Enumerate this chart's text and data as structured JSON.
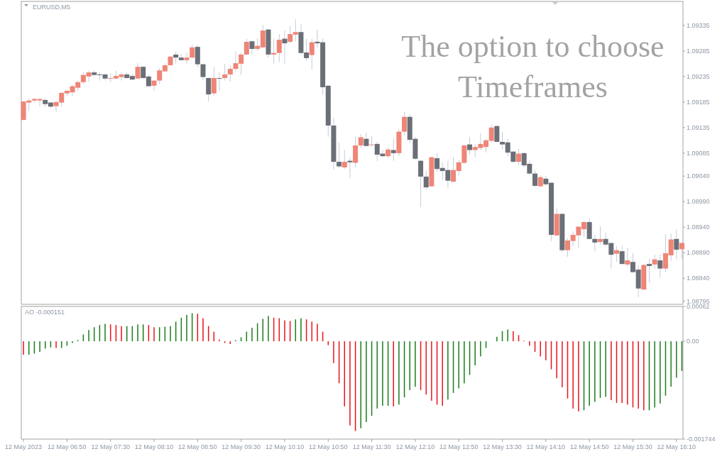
{
  "chart_data": [
    {
      "type": "candlestick",
      "title": "EURUSD,M5",
      "annotations": [
        "The option to choose Timeframes"
      ],
      "tick_labels": "y",
      "xlim": [
        "2023-05-12T06:08",
        "2023-05-12T16:16"
      ],
      "ylim": [
        1.08789,
        1.09382
      ],
      "yticks": [
        1.09335,
        1.09285,
        1.09235,
        1.09185,
        1.09135,
        1.09085,
        {
          "value": 1.0904,
          "label": "1.09040"
        },
        {
          "value": 1.0899,
          "label": "1.08990"
        },
        {
          "value": 1.0894,
          "label": "1.08940"
        },
        {
          "value": 1.0889,
          "label": "1.08890"
        },
        {
          "value": 1.0884,
          "label": "1.08840"
        },
        1.08795
      ],
      "x": [
        "2023-05-12T06:10",
        "2023-05-12T06:15",
        "2023-05-12T06:20",
        "2023-05-12T06:25",
        "2023-05-12T06:30",
        "2023-05-12T06:35",
        "2023-05-12T06:40",
        "2023-05-12T06:45",
        "2023-05-12T06:50",
        "2023-05-12T06:55",
        "2023-05-12T07:00",
        "2023-05-12T07:05",
        "2023-05-12T07:10",
        "2023-05-12T07:15",
        "2023-05-12T07:20",
        "2023-05-12T07:25",
        "2023-05-12T07:30",
        "2023-05-12T07:35",
        "2023-05-12T07:40",
        "2023-05-12T07:45",
        "2023-05-12T07:50",
        "2023-05-12T07:55",
        "2023-05-12T08:00",
        "2023-05-12T08:05",
        "2023-05-12T08:10",
        "2023-05-12T08:15",
        "2023-05-12T08:20",
        "2023-05-12T08:25",
        "2023-05-12T08:30",
        "2023-05-12T08:35",
        "2023-05-12T08:40",
        "2023-05-12T08:45",
        "2023-05-12T08:50",
        "2023-05-12T08:55",
        "2023-05-12T09:00",
        "2023-05-12T09:05",
        "2023-05-12T09:10",
        "2023-05-12T09:15",
        "2023-05-12T09:20",
        "2023-05-12T09:25",
        "2023-05-12T09:30",
        "2023-05-12T09:35",
        "2023-05-12T09:40",
        "2023-05-12T09:45",
        "2023-05-12T09:50",
        "2023-05-12T09:55",
        "2023-05-12T10:00",
        "2023-05-12T10:05",
        "2023-05-12T10:10",
        "2023-05-12T10:15",
        "2023-05-12T10:20",
        "2023-05-12T10:25",
        "2023-05-12T10:30",
        "2023-05-12T10:35",
        "2023-05-12T10:40",
        "2023-05-12T10:45",
        "2023-05-12T10:50",
        "2023-05-12T10:55",
        "2023-05-12T11:00",
        "2023-05-12T11:05",
        "2023-05-12T11:10",
        "2023-05-12T11:15",
        "2023-05-12T11:20",
        "2023-05-12T11:25",
        "2023-05-12T11:30",
        "2023-05-12T11:35",
        "2023-05-12T11:40",
        "2023-05-12T11:45",
        "2023-05-12T11:50",
        "2023-05-12T11:55",
        "2023-05-12T12:00",
        "2023-05-12T12:05",
        "2023-05-12T12:10",
        "2023-05-12T12:15",
        "2023-05-12T12:20",
        "2023-05-12T12:25",
        "2023-05-12T12:30",
        "2023-05-12T12:35",
        "2023-05-12T12:40",
        "2023-05-12T12:45",
        "2023-05-12T12:50",
        "2023-05-12T12:55",
        "2023-05-12T13:00",
        "2023-05-12T13:05",
        "2023-05-12T13:10",
        "2023-05-12T13:15",
        "2023-05-12T13:20",
        "2023-05-12T13:25",
        "2023-05-12T13:30",
        "2023-05-12T13:35",
        "2023-05-12T13:40",
        "2023-05-12T13:45",
        "2023-05-12T13:50",
        "2023-05-12T13:55",
        "2023-05-12T14:00",
        "2023-05-12T14:05",
        "2023-05-12T14:10",
        "2023-05-12T14:15",
        "2023-05-12T14:20",
        "2023-05-12T14:25",
        "2023-05-12T14:30",
        "2023-05-12T14:35",
        "2023-05-12T14:40",
        "2023-05-12T14:45",
        "2023-05-12T14:50",
        "2023-05-12T14:55",
        "2023-05-12T15:00",
        "2023-05-12T15:05",
        "2023-05-12T15:10",
        "2023-05-12T15:15",
        "2023-05-12T15:20",
        "2023-05-12T15:25",
        "2023-05-12T15:30",
        "2023-05-12T15:35",
        "2023-05-12T15:40",
        "2023-05-12T15:45",
        "2023-05-12T15:50",
        "2023-05-12T15:55",
        "2023-05-12T16:00",
        "2023-05-12T16:05",
        "2023-05-12T16:10",
        "2023-05-12T16:15"
      ],
      "ohlc": [
        [
          1.0915,
          1.09187,
          1.09149,
          1.09186
        ],
        [
          1.09184,
          1.09192,
          1.09167,
          1.09188
        ],
        [
          1.09188,
          1.09193,
          1.09184,
          1.09191
        ],
        [
          1.09188,
          1.09192,
          1.09177,
          1.09191
        ],
        [
          1.09189,
          1.09192,
          1.09176,
          1.09181
        ],
        [
          1.09184,
          1.09185,
          1.09173,
          1.09176
        ],
        [
          1.09177,
          1.09187,
          1.09166,
          1.09185
        ],
        [
          1.09184,
          1.09204,
          1.09176,
          1.09203
        ],
        [
          1.09202,
          1.09208,
          1.09197,
          1.09207
        ],
        [
          1.09204,
          1.09218,
          1.09197,
          1.09216
        ],
        [
          1.09213,
          1.09227,
          1.09207,
          1.09224
        ],
        [
          1.09224,
          1.09243,
          1.0922,
          1.09238
        ],
        [
          1.09235,
          1.09246,
          1.09225,
          1.09243
        ],
        [
          1.09243,
          1.09247,
          1.09235,
          1.09238
        ],
        [
          1.09239,
          1.09243,
          1.09227,
          1.09238
        ],
        [
          1.09239,
          1.0924,
          1.09227,
          1.09231
        ],
        [
          1.09231,
          1.09241,
          1.09224,
          1.09232
        ],
        [
          1.09231,
          1.09246,
          1.09229,
          1.09236
        ],
        [
          1.09234,
          1.09243,
          1.09227,
          1.09239
        ],
        [
          1.09239,
          1.09243,
          1.09231,
          1.09232
        ],
        [
          1.09236,
          1.0924,
          1.09228,
          1.09229
        ],
        [
          1.09231,
          1.09261,
          1.0923,
          1.09254
        ],
        [
          1.09254,
          1.09255,
          1.09231,
          1.09232
        ],
        [
          1.09235,
          1.09239,
          1.09215,
          1.09216
        ],
        [
          1.09217,
          1.09228,
          1.09207,
          1.09227
        ],
        [
          1.09227,
          1.09252,
          1.0922,
          1.09247
        ],
        [
          1.09245,
          1.09261,
          1.09244,
          1.09257
        ],
        [
          1.09257,
          1.09275,
          1.09256,
          1.09274
        ],
        [
          1.09278,
          1.09284,
          1.0926,
          1.09272
        ],
        [
          1.09272,
          1.09279,
          1.09266,
          1.09267
        ],
        [
          1.09267,
          1.09282,
          1.0926,
          1.09272
        ],
        [
          1.09272,
          1.09297,
          1.09271,
          1.09292
        ],
        [
          1.09293,
          1.09297,
          1.09253,
          1.09259
        ],
        [
          1.09259,
          1.0926,
          1.09228,
          1.09234
        ],
        [
          1.09232,
          1.09233,
          1.09186,
          1.092
        ],
        [
          1.09202,
          1.09253,
          1.09197,
          1.09232
        ],
        [
          1.09232,
          1.09243,
          1.09206,
          1.09231
        ],
        [
          1.09232,
          1.0926,
          1.09227,
          1.09239
        ],
        [
          1.09239,
          1.09257,
          1.09225,
          1.0925
        ],
        [
          1.0925,
          1.09284,
          1.09245,
          1.09261
        ],
        [
          1.0926,
          1.09282,
          1.09238,
          1.09278
        ],
        [
          1.09278,
          1.09309,
          1.09277,
          1.09303
        ],
        [
          1.09304,
          1.09305,
          1.09278,
          1.09289
        ],
        [
          1.09289,
          1.0931,
          1.09285,
          1.09295
        ],
        [
          1.09292,
          1.09336,
          1.09291,
          1.09325
        ],
        [
          1.09327,
          1.09328,
          1.09272,
          1.09278
        ],
        [
          1.09278,
          1.09309,
          1.0926,
          1.09281
        ],
        [
          1.09281,
          1.09318,
          1.09263,
          1.09307
        ],
        [
          1.09309,
          1.09325,
          1.0926,
          1.093
        ],
        [
          1.09303,
          1.09334,
          1.093,
          1.09318
        ],
        [
          1.09317,
          1.09347,
          1.09304,
          1.09322
        ],
        [
          1.09322,
          1.09338,
          1.09279,
          1.09281
        ],
        [
          1.09282,
          1.09309,
          1.09266,
          1.09271
        ],
        [
          1.09277,
          1.09309,
          1.09249,
          1.09302
        ],
        [
          1.09303,
          1.09327,
          1.09292,
          1.093
        ],
        [
          1.09302,
          1.0931,
          1.09199,
          1.09214
        ],
        [
          1.09217,
          1.09218,
          1.09117,
          1.09139
        ],
        [
          1.09139,
          1.09154,
          1.09053,
          1.09068
        ],
        [
          1.09068,
          1.09106,
          1.09056,
          1.09059
        ],
        [
          1.09057,
          1.09091,
          1.09054,
          1.09068
        ],
        [
          1.0907,
          1.09077,
          1.09036,
          1.09067
        ],
        [
          1.09066,
          1.09117,
          1.09057,
          1.091
        ],
        [
          1.091,
          1.09122,
          1.09095,
          1.09116
        ],
        [
          1.09113,
          1.09125,
          1.09097,
          1.09099
        ],
        [
          1.09101,
          1.09118,
          1.09097,
          1.09102
        ],
        [
          1.09103,
          1.09107,
          1.0907,
          1.09082
        ],
        [
          1.09084,
          1.09092,
          1.09077,
          1.09079
        ],
        [
          1.09079,
          1.09096,
          1.09075,
          1.09092
        ],
        [
          1.09091,
          1.09113,
          1.0907,
          1.09085
        ],
        [
          1.09085,
          1.09132,
          1.09079,
          1.09127
        ],
        [
          1.09127,
          1.09166,
          1.0912,
          1.09156
        ],
        [
          1.09156,
          1.09161,
          1.09104,
          1.09111
        ],
        [
          1.09113,
          1.09117,
          1.09072,
          1.09074
        ],
        [
          1.0907,
          1.09071,
          1.08979,
          1.09039
        ],
        [
          1.09039,
          1.0905,
          1.09014,
          1.09018
        ],
        [
          1.0902,
          1.09078,
          1.09019,
          1.09077
        ],
        [
          1.09075,
          1.09085,
          1.09049,
          1.09054
        ],
        [
          1.09056,
          1.09067,
          1.09032,
          1.0905
        ],
        [
          1.09052,
          1.0907,
          1.09017,
          1.09031
        ],
        [
          1.09029,
          1.09077,
          1.09028,
          1.09052
        ],
        [
          1.0905,
          1.09072,
          1.09041,
          1.09067
        ],
        [
          1.09066,
          1.09102,
          1.09064,
          1.091
        ],
        [
          1.09102,
          1.09117,
          1.09082,
          1.09091
        ],
        [
          1.09091,
          1.09103,
          1.09077,
          1.09097
        ],
        [
          1.09095,
          1.09124,
          1.09091,
          1.09103
        ],
        [
          1.09097,
          1.09113,
          1.09086,
          1.0911
        ],
        [
          1.09109,
          1.09141,
          1.09106,
          1.09135
        ],
        [
          1.09138,
          1.09139,
          1.09106,
          1.09107
        ],
        [
          1.09107,
          1.09127,
          1.09093,
          1.09102
        ],
        [
          1.09106,
          1.09113,
          1.09079,
          1.09086
        ],
        [
          1.09088,
          1.09089,
          1.09066,
          1.09068
        ],
        [
          1.09068,
          1.09093,
          1.09061,
          1.09084
        ],
        [
          1.09085,
          1.09086,
          1.09057,
          1.09061
        ],
        [
          1.09064,
          1.0907,
          1.09043,
          1.09045
        ],
        [
          1.09045,
          1.09052,
          1.09018,
          1.09021
        ],
        [
          1.0902,
          1.09041,
          1.09019,
          1.09038
        ],
        [
          1.09035,
          1.09041,
          1.09021,
          1.09024
        ],
        [
          1.09027,
          1.09028,
          1.08913,
          1.08925
        ],
        [
          1.08924,
          1.08977,
          1.08923,
          1.08966
        ],
        [
          1.08966,
          1.08968,
          1.08891,
          1.08895
        ],
        [
          1.08895,
          1.08918,
          1.08882,
          1.08914
        ],
        [
          1.08913,
          1.08932,
          1.08903,
          1.08925
        ],
        [
          1.08924,
          1.08942,
          1.089,
          1.08941
        ],
        [
          1.08936,
          1.08952,
          1.08921,
          1.0895
        ],
        [
          1.0895,
          1.08957,
          1.08916,
          1.08917
        ],
        [
          1.08917,
          1.08925,
          1.08893,
          1.0891
        ],
        [
          1.08911,
          1.08942,
          1.08906,
          1.08917
        ],
        [
          1.08917,
          1.08929,
          1.08903,
          1.08906
        ],
        [
          1.08909,
          1.0891,
          1.08859,
          1.08886
        ],
        [
          1.08888,
          1.08903,
          1.08872,
          1.08895
        ],
        [
          1.08893,
          1.08904,
          1.08867,
          1.08868
        ],
        [
          1.08867,
          1.089,
          1.08863,
          1.08875
        ],
        [
          1.08872,
          1.08889,
          1.08851,
          1.08852
        ],
        [
          1.08857,
          1.08866,
          1.08803,
          1.0882
        ],
        [
          1.08818,
          1.08868,
          1.08817,
          1.08866
        ],
        [
          1.08868,
          1.08878,
          1.08831,
          1.08864
        ],
        [
          1.08867,
          1.08886,
          1.08859,
          1.08877
        ],
        [
          1.08875,
          1.08886,
          1.08841,
          1.08859
        ],
        [
          1.08859,
          1.08926,
          1.08852,
          1.08889
        ],
        [
          1.08885,
          1.08927,
          1.08874,
          1.08916
        ],
        [
          1.08917,
          1.08935,
          1.08877,
          1.08896
        ],
        [
          1.08897,
          1.08911,
          1.08878,
          1.08909
        ]
      ],
      "colors": [
        "#ef8577",
        "#ef8577",
        "#ef8577",
        "#ef8577",
        "#6b6f77",
        "#6b6f77",
        "#ef8577",
        "#ef8577",
        "#ef8577",
        "#ef8577",
        "#ef8577",
        "#ef8577",
        "#ef8577",
        "#6b6f77",
        "#6b6f77",
        "#6b6f77",
        "#ef8577",
        "#ef8577",
        "#ef8577",
        "#6b6f77",
        "#6b6f77",
        "#ef8577",
        "#6b6f77",
        "#6b6f77",
        "#ef8577",
        "#ef8577",
        "#ef8577",
        "#ef8577",
        "#6b6f77",
        "#6b6f77",
        "#ef8577",
        "#ef8577",
        "#6b6f77",
        "#6b6f77",
        "#6b6f77",
        "#ef8577",
        "#6b6f77",
        "#ef8577",
        "#ef8577",
        "#ef8577",
        "#ef8577",
        "#ef8577",
        "#6b6f77",
        "#ef8577",
        "#ef8577",
        "#6b6f77",
        "#ef8577",
        "#ef8577",
        "#6b6f77",
        "#ef8577",
        "#ef8577",
        "#6b6f77",
        "#6b6f77",
        "#ef8577",
        "#6b6f77",
        "#6b6f77",
        "#6b6f77",
        "#6b6f77",
        "#6b6f77",
        "#ef8577",
        "#6b6f77",
        "#ef8577",
        "#ef8577",
        "#6b6f77",
        "#ef8577",
        "#6b6f77",
        "#6b6f77",
        "#ef8577",
        "#6b6f77",
        "#ef8577",
        "#ef8577",
        "#6b6f77",
        "#6b6f77",
        "#6b6f77",
        "#6b6f77",
        "#ef8577",
        "#6b6f77",
        "#6b6f77",
        "#6b6f77",
        "#ef8577",
        "#ef8577",
        "#ef8577",
        "#6b6f77",
        "#ef8577",
        "#ef8577",
        "#ef8577",
        "#ef8577",
        "#6b6f77",
        "#6b6f77",
        "#6b6f77",
        "#6b6f77",
        "#ef8577",
        "#6b6f77",
        "#6b6f77",
        "#6b6f77",
        "#ef8577",
        "#6b6f77",
        "#6b6f77",
        "#ef8577",
        "#6b6f77",
        "#ef8577",
        "#ef8577",
        "#ef8577",
        "#ef8577",
        "#6b6f77",
        "#6b6f77",
        "#ef8577",
        "#6b6f77",
        "#6b6f77",
        "#ef8577",
        "#6b6f77",
        "#ef8577",
        "#6b6f77",
        "#6b6f77",
        "#ef8577",
        "#6b6f77",
        "#ef8577",
        "#6b6f77",
        "#ef8577",
        "#ef8577",
        "#6b6f77",
        "#ef8577"
      ]
    },
    {
      "type": "bar",
      "title": "AO -0.000151",
      "xlim": [
        "2023-05-12T06:08",
        "2023-05-12T16:16"
      ],
      "xticks": [
        {
          "value": "2023-05-12T06:10",
          "label": "12 May 2023"
        },
        {
          "value": "2023-05-12T06:50",
          "label": "12 May 06:50"
        },
        {
          "value": "2023-05-12T07:30",
          "label": "12 May 07:30"
        },
        {
          "value": "2023-05-12T08:10",
          "label": "12 May 08:10"
        },
        {
          "value": "2023-05-12T08:50",
          "label": "12 May 08:50"
        },
        {
          "value": "2023-05-12T09:30",
          "label": "12 May 09:30"
        },
        {
          "value": "2023-05-12T10:10",
          "label": "12 May 10:10"
        },
        {
          "value": "2023-05-12T10:50",
          "label": "12 May 10:50"
        },
        {
          "value": "2023-05-12T11:30",
          "label": "12 May 11:30"
        },
        {
          "value": "2023-05-12T12:10",
          "label": "12 May 12:10"
        },
        {
          "value": "2023-05-12T12:50",
          "label": "12 May 12:50"
        },
        {
          "value": "2023-05-12T13:30",
          "label": "12 May 13:30"
        },
        {
          "value": "2023-05-12T14:10",
          "label": "12 May 14:10"
        },
        {
          "value": "2023-05-12T14:50",
          "label": "12 May 14:50"
        },
        {
          "value": "2023-05-12T15:30",
          "label": "12 May 15:30"
        },
        {
          "value": "2023-05-12T16:10",
          "label": "12 May 16:10"
        }
      ],
      "ylim": [
        -0.001744,
        0.00062
      ],
      "yticks": [
        0.00062,
        {
          "value": 0,
          "label": "0.00"
        },
        -0.001744
      ],
      "x": [
        "2023-05-12T06:10",
        "2023-05-12T06:15",
        "2023-05-12T06:20",
        "2023-05-12T06:25",
        "2023-05-12T06:30",
        "2023-05-12T06:35",
        "2023-05-12T06:40",
        "2023-05-12T06:45",
        "2023-05-12T06:50",
        "2023-05-12T06:55",
        "2023-05-12T07:00",
        "2023-05-12T07:05",
        "2023-05-12T07:10",
        "2023-05-12T07:15",
        "2023-05-12T07:20",
        "2023-05-12T07:25",
        "2023-05-12T07:30",
        "2023-05-12T07:35",
        "2023-05-12T07:40",
        "2023-05-12T07:45",
        "2023-05-12T07:50",
        "2023-05-12T07:55",
        "2023-05-12T08:00",
        "2023-05-12T08:05",
        "2023-05-12T08:10",
        "2023-05-12T08:15",
        "2023-05-12T08:20",
        "2023-05-12T08:25",
        "2023-05-12T08:30",
        "2023-05-12T08:35",
        "2023-05-12T08:40",
        "2023-05-12T08:45",
        "2023-05-12T08:50",
        "2023-05-12T08:55",
        "2023-05-12T09:00",
        "2023-05-12T09:05",
        "2023-05-12T09:10",
        "2023-05-12T09:15",
        "2023-05-12T09:20",
        "2023-05-12T09:25",
        "2023-05-12T09:30",
        "2023-05-12T09:35",
        "2023-05-12T09:40",
        "2023-05-12T09:45",
        "2023-05-12T09:50",
        "2023-05-12T09:55",
        "2023-05-12T10:00",
        "2023-05-12T10:05",
        "2023-05-12T10:10",
        "2023-05-12T10:15",
        "2023-05-12T10:20",
        "2023-05-12T10:25",
        "2023-05-12T10:30",
        "2023-05-12T10:35",
        "2023-05-12T10:40",
        "2023-05-12T10:45",
        "2023-05-12T10:50",
        "2023-05-12T10:55",
        "2023-05-12T11:00",
        "2023-05-12T11:05",
        "2023-05-12T11:10",
        "2023-05-12T11:15",
        "2023-05-12T11:20",
        "2023-05-12T11:25",
        "2023-05-12T11:30",
        "2023-05-12T11:35",
        "2023-05-12T11:40",
        "2023-05-12T11:45",
        "2023-05-12T11:50",
        "2023-05-12T11:55",
        "2023-05-12T12:00",
        "2023-05-12T12:05",
        "2023-05-12T12:10",
        "2023-05-12T12:15",
        "2023-05-12T12:20",
        "2023-05-12T12:25",
        "2023-05-12T12:30",
        "2023-05-12T12:35",
        "2023-05-12T12:40",
        "2023-05-12T12:45",
        "2023-05-12T12:50",
        "2023-05-12T12:55",
        "2023-05-12T13:00",
        "2023-05-12T13:05",
        "2023-05-12T13:10",
        "2023-05-12T13:15",
        "2023-05-12T13:20",
        "2023-05-12T13:25",
        "2023-05-12T13:30",
        "2023-05-12T13:35",
        "2023-05-12T13:40",
        "2023-05-12T13:45",
        "2023-05-12T13:50",
        "2023-05-12T13:55",
        "2023-05-12T14:00",
        "2023-05-12T14:05",
        "2023-05-12T14:10",
        "2023-05-12T14:15",
        "2023-05-12T14:20",
        "2023-05-12T14:25",
        "2023-05-12T14:30",
        "2023-05-12T14:35",
        "2023-05-12T14:40",
        "2023-05-12T14:45",
        "2023-05-12T14:50",
        "2023-05-12T14:55",
        "2023-05-12T15:00",
        "2023-05-12T15:05",
        "2023-05-12T15:10",
        "2023-05-12T15:15",
        "2023-05-12T15:20",
        "2023-05-12T15:25",
        "2023-05-12T15:30",
        "2023-05-12T15:35",
        "2023-05-12T15:40",
        "2023-05-12T15:45",
        "2023-05-12T15:50",
        "2023-05-12T15:55",
        "2023-05-12T16:00",
        "2023-05-12T16:05",
        "2023-05-12T16:10",
        "2023-05-12T16:15"
      ],
      "values": [
        -0.00024,
        -0.00024,
        -0.00022,
        -0.00019,
        -0.00013,
        -0.00011,
        -0.00012,
        -0.00012,
        -8e-05,
        -3e-05,
        2e-05,
        0.00012,
        0.0002,
        0.00025,
        0.00029,
        0.00031,
        0.0003,
        0.00029,
        0.00027,
        0.00027,
        0.00027,
        0.0003,
        0.0003,
        0.00029,
        0.00025,
        0.00025,
        0.00026,
        0.00027,
        0.00035,
        0.00042,
        0.00047,
        0.0005,
        0.00049,
        0.00041,
        0.00027,
        0.00017,
        3e-05,
        -3e-05,
        -5e-05,
        2e-05,
        7e-05,
        0.00017,
        0.00024,
        0.00032,
        0.0004,
        0.00045,
        0.00042,
        0.00041,
        0.00037,
        0.00036,
        0.00039,
        0.00041,
        0.00039,
        0.00035,
        0.00031,
        0.00017,
        -7e-05,
        -0.00039,
        -0.00075,
        -0.00116,
        -0.0015,
        -0.0016,
        -0.00155,
        -0.00144,
        -0.00133,
        -0.0012,
        -0.00115,
        -0.00115,
        -0.00116,
        -0.00113,
        -0.001,
        -0.00087,
        -0.00081,
        -0.00087,
        -0.00095,
        -0.00106,
        -0.00113,
        -0.00115,
        -0.00104,
        -0.00092,
        -0.00084,
        -0.00075,
        -0.0006,
        -0.00043,
        -0.00027,
        -0.00012,
        0,
        8e-05,
        0.00018,
        0.00021,
        0.00018,
        0.00011,
        1e-05,
        -8e-05,
        -0.00019,
        -0.00027,
        -0.00034,
        -0.0005,
        -0.00066,
        -0.00082,
        -0.00102,
        -0.0012,
        -0.00125,
        -0.00123,
        -0.00115,
        -0.00108,
        -0.00101,
        -0.00099,
        -0.00105,
        -0.0011,
        -0.0011,
        -0.00113,
        -0.00118,
        -0.0012,
        -0.00123,
        -0.00123,
        -0.00118,
        -0.00111,
        -0.00097,
        -0.00081,
        -0.00065,
        -0.00053
      ],
      "colors": [
        "#e8141b",
        "#1b7d1b",
        "#1b7d1b",
        "#1b7d1b",
        "#1b7d1b",
        "#1b7d1b",
        "#e8141b",
        "#1b7d1b",
        "#1b7d1b",
        "#1b7d1b",
        "#1b7d1b",
        "#1b7d1b",
        "#1b7d1b",
        "#1b7d1b",
        "#1b7d1b",
        "#1b7d1b",
        "#e8141b",
        "#e8141b",
        "#e8141b",
        "#1b7d1b",
        "#1b7d1b",
        "#1b7d1b",
        "#1b7d1b",
        "#e8141b",
        "#e8141b",
        "#1b7d1b",
        "#1b7d1b",
        "#1b7d1b",
        "#1b7d1b",
        "#1b7d1b",
        "#1b7d1b",
        "#1b7d1b",
        "#e8141b",
        "#e8141b",
        "#e8141b",
        "#e8141b",
        "#e8141b",
        "#e8141b",
        "#e8141b",
        "#1b7d1b",
        "#1b7d1b",
        "#1b7d1b",
        "#1b7d1b",
        "#1b7d1b",
        "#1b7d1b",
        "#1b7d1b",
        "#e8141b",
        "#e8141b",
        "#e8141b",
        "#e8141b",
        "#1b7d1b",
        "#1b7d1b",
        "#e8141b",
        "#e8141b",
        "#e8141b",
        "#e8141b",
        "#e8141b",
        "#e8141b",
        "#e8141b",
        "#e8141b",
        "#e8141b",
        "#e8141b",
        "#1b7d1b",
        "#1b7d1b",
        "#1b7d1b",
        "#1b7d1b",
        "#1b7d1b",
        "#1b7d1b",
        "#e8141b",
        "#1b7d1b",
        "#1b7d1b",
        "#1b7d1b",
        "#1b7d1b",
        "#e8141b",
        "#e8141b",
        "#e8141b",
        "#e8141b",
        "#e8141b",
        "#1b7d1b",
        "#1b7d1b",
        "#1b7d1b",
        "#1b7d1b",
        "#1b7d1b",
        "#1b7d1b",
        "#1b7d1b",
        "#1b7d1b",
        "#1b7d1b",
        "#1b7d1b",
        "#1b7d1b",
        "#1b7d1b",
        "#e8141b",
        "#e8141b",
        "#e8141b",
        "#e8141b",
        "#e8141b",
        "#e8141b",
        "#e8141b",
        "#e8141b",
        "#e8141b",
        "#e8141b",
        "#e8141b",
        "#e8141b",
        "#e8141b",
        "#1b7d1b",
        "#1b7d1b",
        "#1b7d1b",
        "#1b7d1b",
        "#1b7d1b",
        "#e8141b",
        "#e8141b",
        "#e8141b",
        "#e8141b",
        "#e8141b",
        "#e8141b",
        "#e8141b",
        "#1b7d1b",
        "#1b7d1b",
        "#1b7d1b",
        "#1b7d1b",
        "#1b7d1b",
        "#1b7d1b",
        "#1b7d1b"
      ]
    }
  ]
}
